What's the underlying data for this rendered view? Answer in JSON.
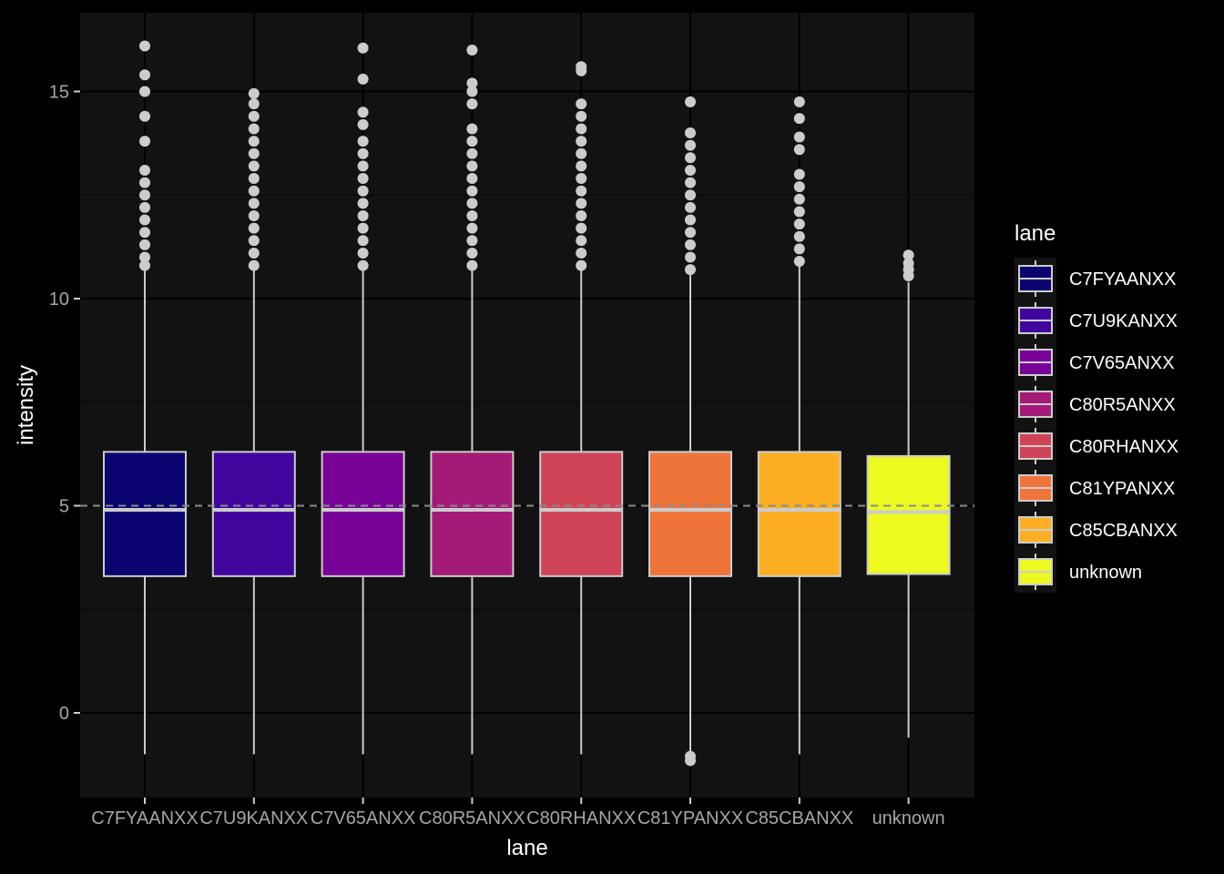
{
  "chart_data": {
    "type": "box",
    "xlabel": "lane",
    "ylabel": "intensity",
    "ylim": [
      -2,
      17
    ],
    "y_ticks": [
      0,
      5,
      10,
      15
    ],
    "reference_line": 5,
    "grid": true,
    "legend": {
      "title": "lane",
      "position": "right"
    },
    "categories": [
      "C7FYAANXX",
      "C7U9KANXX",
      "C7V65ANXX",
      "C80R5ANXX",
      "C80RHANXX",
      "C81YPANXX",
      "C85CBANXX",
      "unknown"
    ],
    "colors": [
      "#0d0887",
      "#46039f",
      "#7201a8",
      "#9c179e",
      "#bd3786",
      "#d8576b",
      "#ed7953",
      "#fb9f3a",
      "#fdca26",
      "#f0f921"
    ],
    "fill_colors": [
      "#0b0470",
      "#41049d",
      "#780197",
      "#a31a77",
      "#cf4557",
      "#ef743a",
      "#fdaf23",
      "#edfa1f"
    ],
    "boxes": [
      {
        "category": "C7FYAANXX",
        "lower_whisker": -1.0,
        "q1": 3.3,
        "median": 4.9,
        "q3": 6.3,
        "upper_whisker": 10.7,
        "outliers": [
          10.8,
          11.0,
          11.3,
          11.6,
          11.9,
          12.2,
          12.5,
          12.8,
          13.1,
          13.8,
          14.4,
          15.0,
          15.4,
          16.1
        ]
      },
      {
        "category": "C7U9KANXX",
        "lower_whisker": -1.0,
        "q1": 3.3,
        "median": 4.9,
        "q3": 6.3,
        "upper_whisker": 10.7,
        "outliers": [
          10.8,
          11.1,
          11.4,
          11.7,
          12.0,
          12.3,
          12.6,
          12.9,
          13.2,
          13.5,
          13.8,
          14.1,
          14.4,
          14.7,
          14.95
        ]
      },
      {
        "category": "C7V65ANXX",
        "lower_whisker": -1.0,
        "q1": 3.3,
        "median": 4.9,
        "q3": 6.3,
        "upper_whisker": 10.7,
        "outliers": [
          10.8,
          11.1,
          11.4,
          11.7,
          12.0,
          12.3,
          12.6,
          12.9,
          13.2,
          13.5,
          13.8,
          14.2,
          14.5,
          15.3,
          16.05
        ]
      },
      {
        "category": "C80R5ANXX",
        "lower_whisker": -1.0,
        "q1": 3.3,
        "median": 4.9,
        "q3": 6.3,
        "upper_whisker": 10.7,
        "outliers": [
          10.8,
          11.1,
          11.4,
          11.7,
          12.0,
          12.3,
          12.6,
          12.9,
          13.2,
          13.5,
          13.8,
          14.1,
          14.7,
          15.0,
          15.2,
          16.0
        ]
      },
      {
        "category": "C80RHANXX",
        "lower_whisker": -1.0,
        "q1": 3.3,
        "median": 4.9,
        "q3": 6.3,
        "upper_whisker": 10.7,
        "outliers": [
          10.8,
          11.1,
          11.4,
          11.7,
          12.0,
          12.3,
          12.6,
          12.9,
          13.2,
          13.5,
          13.8,
          14.1,
          14.4,
          14.7,
          15.5,
          15.6
        ]
      },
      {
        "category": "C81YPANXX",
        "lower_whisker": -1.0,
        "q1": 3.3,
        "median": 4.9,
        "q3": 6.3,
        "upper_whisker": 10.6,
        "outliers": [
          10.7,
          11.0,
          11.3,
          11.6,
          11.9,
          12.2,
          12.5,
          12.8,
          13.1,
          13.4,
          13.7,
          14.0,
          14.75,
          -1.05,
          -1.15
        ]
      },
      {
        "category": "C85CBANXX",
        "lower_whisker": -1.0,
        "q1": 3.3,
        "median": 4.9,
        "q3": 6.3,
        "upper_whisker": 10.8,
        "outliers": [
          10.9,
          11.2,
          11.5,
          11.8,
          12.1,
          12.4,
          12.7,
          13.0,
          13.6,
          13.9,
          14.35,
          14.75
        ]
      },
      {
        "category": "unknown",
        "lower_whisker": -0.6,
        "q1": 3.35,
        "median": 4.85,
        "q3": 6.2,
        "upper_whisker": 10.4,
        "outliers": [
          10.55,
          10.7,
          10.85,
          11.05
        ]
      }
    ]
  }
}
